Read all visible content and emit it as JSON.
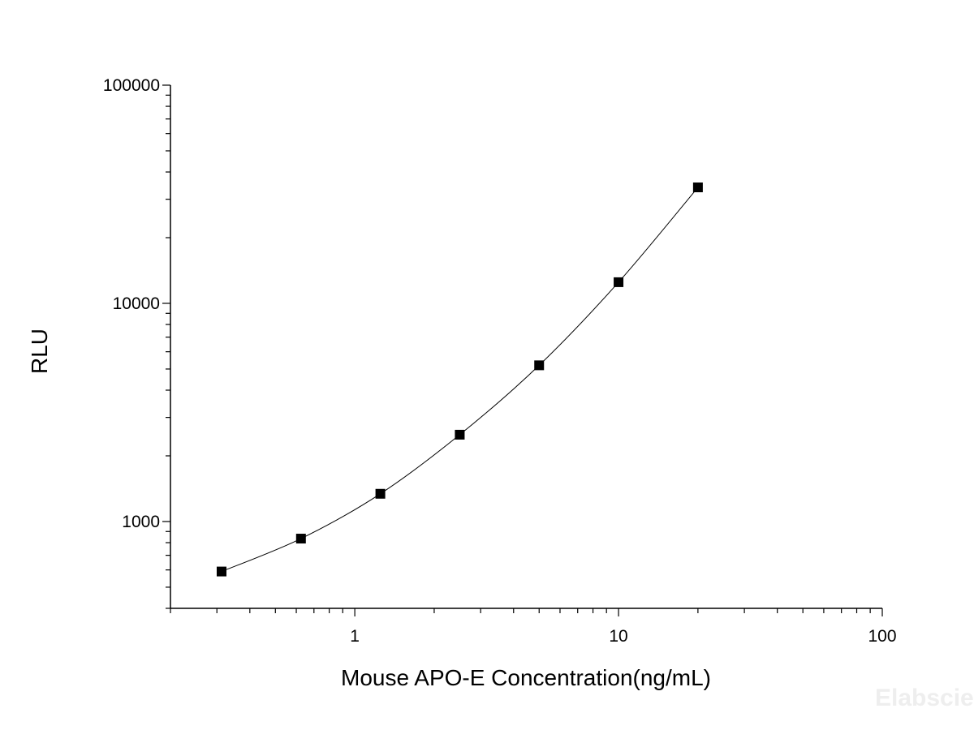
{
  "chart_data": {
    "type": "scatter",
    "title": "",
    "xlabel": "Mouse APO-E Concentration(ng/mL)",
    "ylabel": "RLU",
    "x_scale": "log",
    "y_scale": "log",
    "xlim": [
      0.2,
      100
    ],
    "ylim": [
      400,
      100000
    ],
    "x_ticks": [
      {
        "value": 1,
        "label": "1"
      },
      {
        "value": 10,
        "label": "10"
      },
      {
        "value": 100,
        "label": "100"
      }
    ],
    "y_ticks": [
      {
        "value": 1000,
        "label": "1000"
      },
      {
        "value": 10000,
        "label": "10000"
      },
      {
        "value": 100000,
        "label": "100000"
      }
    ],
    "grid": false,
    "legend": "none",
    "series": [
      {
        "x": [
          0.3125,
          0.625,
          1.25,
          2.5,
          5,
          10,
          20
        ],
        "y": [
          590,
          835,
          1340,
          2500,
          5200,
          12500,
          34000
        ],
        "marker": "square",
        "color": "#000000",
        "fit_line": "smooth-curve"
      }
    ]
  },
  "watermark": "Elabscience"
}
